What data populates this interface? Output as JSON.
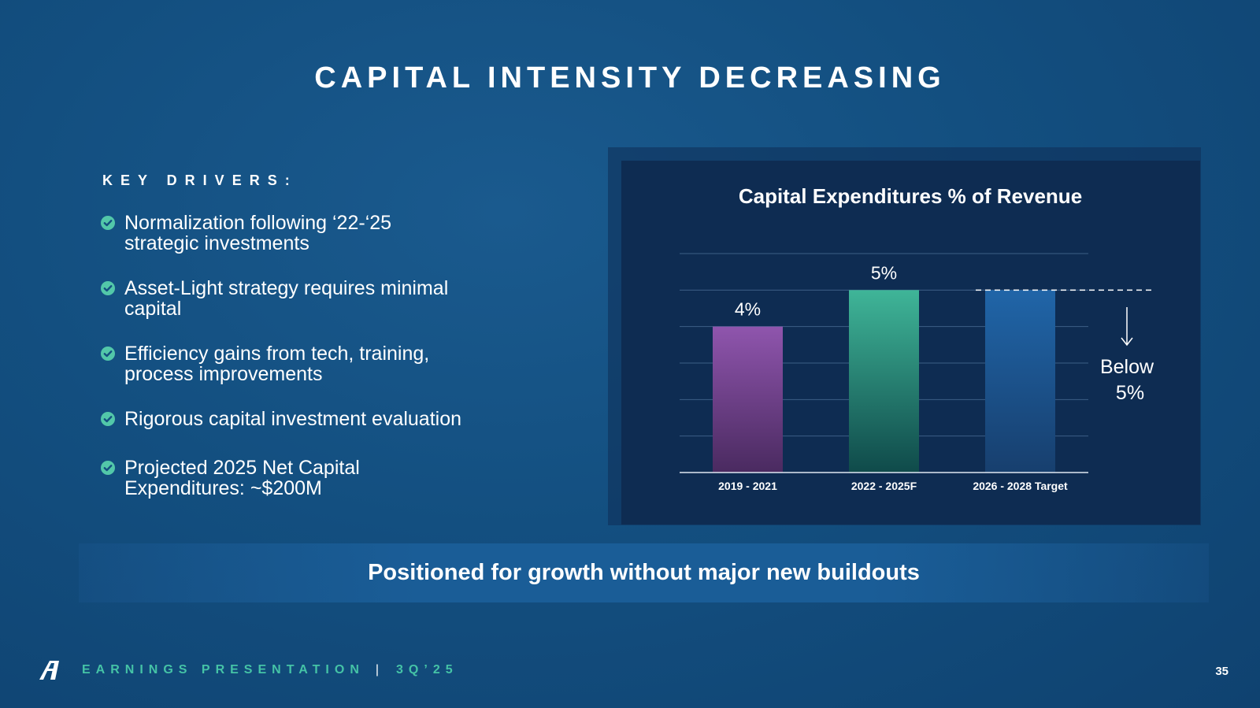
{
  "slide": {
    "title": "CAPITAL INTENSITY DECREASING"
  },
  "drivers": {
    "title": "KEY DRIVERS:",
    "items": [
      {
        "line1": "Normalization following ‘22-‘25",
        "line2": "strategic investments"
      },
      {
        "line1": "Asset-Light strategy requires minimal",
        "line2": "capital"
      },
      {
        "line1": "Efficiency gains from tech, training,",
        "line2": "process improvements"
      },
      {
        "line1": "Rigorous capital investment evaluation",
        "line2": ""
      },
      {
        "line1": "Projected 2025 Net Capital",
        "line2": "Expenditures: ~$200M"
      }
    ],
    "check_icon": "check-circle-icon"
  },
  "chart_data": {
    "type": "bar",
    "title": "Capital Expenditures % of Revenue",
    "categories": [
      "2019 - 2021",
      "2022 - 2025F",
      "2026 - 2028 Target"
    ],
    "values": [
      4,
      5,
      5
    ],
    "data_labels": [
      "4%",
      "5%",
      ""
    ],
    "ylim": [
      0,
      6
    ],
    "yticks": [
      0,
      1,
      2,
      3,
      4,
      5,
      6
    ],
    "grid": true,
    "xlabel": "",
    "ylabel": "",
    "annotation": {
      "line1": "Below",
      "line2": "5%",
      "icon": "arrow-down-icon",
      "target_value": 5
    },
    "colors": {
      "2019 - 2021": [
        "#8f55ad",
        "#4a2a60"
      ],
      "2022 - 2025F": [
        "#3fb598",
        "#0f4a4a"
      ],
      "2026 - 2028 Target": [
        "#2065a8",
        "#173f6e"
      ]
    }
  },
  "banner": {
    "text": "Positioned for growth without major new buildouts"
  },
  "footer": {
    "logo_icon": "a-logo-icon",
    "label": "EARNINGS PRESENTATION",
    "separator": "|",
    "quarter": "3Q’25",
    "page": "35"
  }
}
